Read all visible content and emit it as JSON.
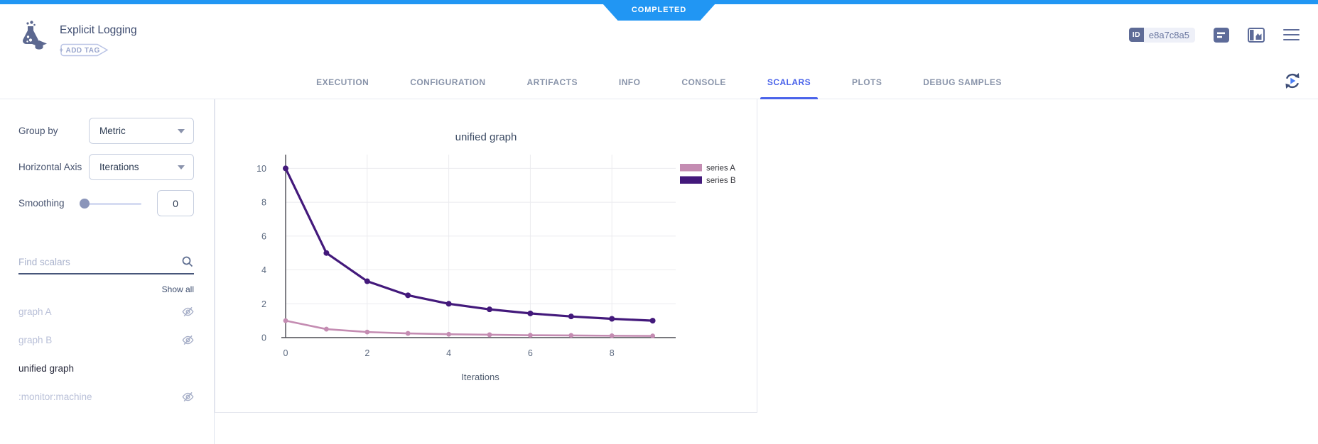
{
  "status_banner": {
    "label": "COMPLETED",
    "color": "#2196f3"
  },
  "header": {
    "title": "Explicit Logging",
    "add_tag_label": "+ ADD TAG",
    "id_label": "ID",
    "id_value": "e8a7c8a5"
  },
  "tabs": {
    "active": "SCALARS",
    "items": [
      {
        "label": "EXECUTION"
      },
      {
        "label": "CONFIGURATION"
      },
      {
        "label": "ARTIFACTS"
      },
      {
        "label": "INFO"
      },
      {
        "label": "CONSOLE"
      },
      {
        "label": "SCALARS"
      },
      {
        "label": "PLOTS"
      },
      {
        "label": "DEBUG SAMPLES"
      }
    ]
  },
  "sidebar": {
    "group_by": {
      "label": "Group by",
      "value": "Metric"
    },
    "horizontal_axis": {
      "label": "Horizontal Axis",
      "value": "Iterations"
    },
    "smoothing": {
      "label": "Smoothing",
      "value": "0"
    },
    "search": {
      "placeholder": "Find scalars"
    },
    "show_all_label": "Show all",
    "metrics": [
      {
        "label": "graph A",
        "hidden": true
      },
      {
        "label": "graph B",
        "hidden": true
      },
      {
        "label": "unified graph",
        "hidden": false
      },
      {
        "label": ":monitor:machine",
        "hidden": true
      }
    ]
  },
  "chart_data": {
    "type": "line",
    "title": "unified graph",
    "xlabel": "Iterations",
    "ylabel": "",
    "x": [
      0,
      1,
      2,
      3,
      4,
      5,
      6,
      7,
      8,
      9
    ],
    "series": [
      {
        "name": "series A",
        "color": "#c48cb2",
        "values": [
          1,
          0.5,
          0.33,
          0.25,
          0.2,
          0.17,
          0.14,
          0.13,
          0.11,
          0.1
        ]
      },
      {
        "name": "series B",
        "color": "#43197b",
        "values": [
          10,
          5,
          3.33,
          2.5,
          2,
          1.67,
          1.43,
          1.25,
          1.11,
          1
        ]
      }
    ],
    "xlim": [
      0,
      9
    ],
    "ylim": [
      0,
      10
    ],
    "xticks": [
      0,
      2,
      4,
      6,
      8
    ],
    "yticks": [
      0,
      2,
      4,
      6,
      8,
      10
    ],
    "grid": true,
    "legend_position": "top-right"
  },
  "colors": {
    "accent_blue": "#4a63ea",
    "banner_blue": "#2196f3",
    "slate_icon": "#5d6b99"
  }
}
